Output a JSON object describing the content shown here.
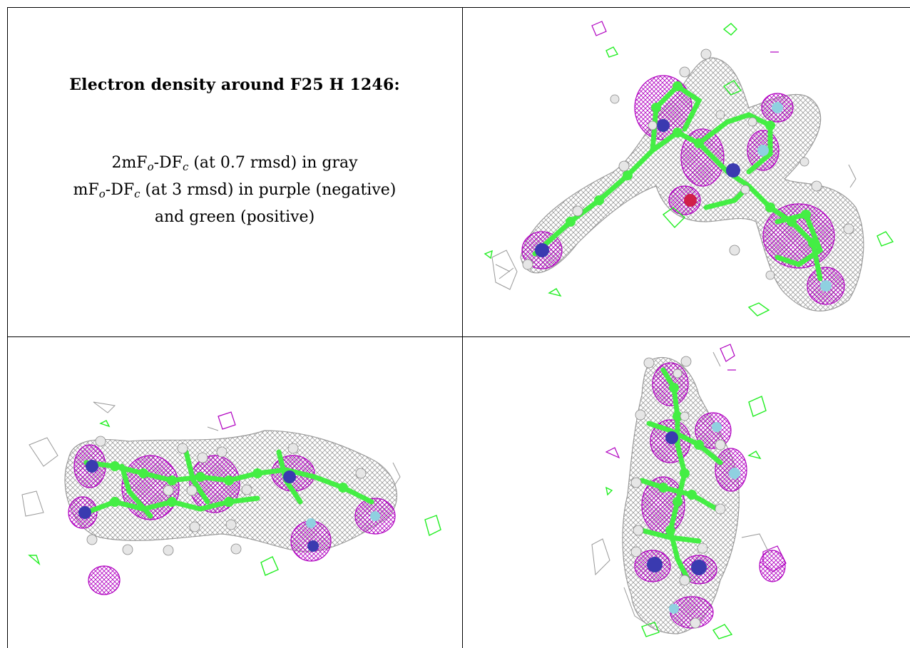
{
  "caption": {
    "title": "Electron density around F25 H 1246:",
    "line1_prefix": "2mF",
    "line1_sub1": "o",
    "line1_mid": "-DF",
    "line1_sub2": "c",
    "line1_suffix": " (at 0.7 rmsd) in gray",
    "line2_prefix": "mF",
    "line2_sub1": "o",
    "line2_mid": "-DF",
    "line2_sub2": "c",
    "line2_suffix": " (at 3 rmsd) in purple (negative)",
    "line3": "and green (positive)"
  },
  "colors": {
    "map_2fofc": "#8c8c8c",
    "map_negative": "#b000c0",
    "map_positive": "#22ee22",
    "carbon": "#44ee44",
    "nitrogen": "#3a3ab0",
    "oxygen": "#d0204a",
    "fluorine": "#8fd0e0",
    "hydrogen": "#e6e6e6"
  },
  "views": [
    {
      "name": "view-top-right"
    },
    {
      "name": "view-bottom-left"
    },
    {
      "name": "view-bottom-right"
    }
  ]
}
